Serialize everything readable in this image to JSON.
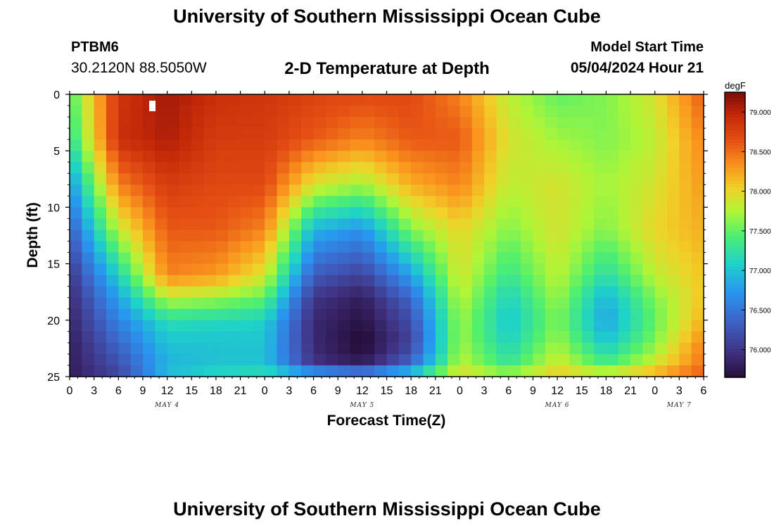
{
  "header": {
    "title": "University of Southern Mississippi Ocean Cube",
    "station_id": "PTBM6",
    "station_coords": "30.2120N  88.5050W",
    "plot_title": "2-D Temperature at Depth",
    "model_start_label": "Model Start Time",
    "model_start_value": "05/04/2024 Hour 21"
  },
  "footer": {
    "title": "University of Southern Mississippi Ocean Cube"
  },
  "chart_data": {
    "type": "heatmap",
    "title": "2-D Temperature at Depth",
    "xlabel": "Forecast Time(Z)",
    "ylabel": "Depth (ft)",
    "colorbar_unit": "degF",
    "x_tick_labels": [
      "0",
      "3",
      "6",
      "9",
      "12",
      "15",
      "18",
      "21",
      "0",
      "3",
      "6",
      "9",
      "12",
      "15",
      "18",
      "21",
      "0",
      "3",
      "6",
      "9",
      "12",
      "15",
      "18",
      "21",
      "0",
      "3",
      "6"
    ],
    "date_labels": [
      {
        "label": "MAY 4",
        "at_tick": 4
      },
      {
        "label": "MAY 5",
        "at_tick": 12
      },
      {
        "label": "MAY 6",
        "at_tick": 20
      },
      {
        "label": "MAY 7",
        "at_tick": 25
      }
    ],
    "y_ticks": [
      0,
      5,
      10,
      15,
      20,
      25
    ],
    "ylim": [
      0,
      25
    ],
    "y_inverted": true,
    "colorbar_ticks": [
      "79.000",
      "78.500",
      "78.000",
      "77.500",
      "77.000",
      "76.500",
      "76.000"
    ],
    "colorbar_range": [
      75.65,
      79.25
    ],
    "grid": false,
    "forecast_hours": [
      0,
      6,
      12,
      18,
      24,
      30,
      36,
      42,
      48,
      54,
      60,
      66,
      72,
      78
    ],
    "depths_ft": [
      0,
      4,
      8,
      12,
      16,
      18,
      20,
      22,
      24,
      25
    ],
    "values_degF": [
      [
        77.4,
        77.2,
        76.7,
        76.3,
        76.0,
        75.9,
        75.85,
        75.8,
        75.8,
        75.8
      ],
      [
        78.85,
        78.9,
        78.4,
        77.8,
        77.1,
        76.8,
        76.6,
        76.4,
        76.2,
        76.1
      ],
      [
        79.1,
        79.05,
        78.8,
        78.6,
        78.4,
        77.8,
        77.2,
        77.0,
        76.9,
        77.0
      ],
      [
        78.9,
        78.8,
        78.7,
        78.6,
        78.3,
        77.7,
        77.15,
        77.0,
        77.0,
        77.2
      ],
      [
        78.85,
        78.8,
        78.7,
        78.4,
        77.9,
        77.5,
        77.1,
        77.0,
        77.0,
        77.3
      ],
      [
        78.75,
        78.6,
        77.9,
        76.9,
        76.3,
        76.0,
        75.9,
        75.9,
        76.0,
        77.2
      ],
      [
        78.7,
        78.4,
        77.7,
        76.7,
        76.1,
        75.8,
        75.7,
        75.6,
        75.8,
        77.0
      ],
      [
        78.7,
        78.6,
        78.2,
        77.6,
        76.8,
        76.4,
        76.2,
        76.1,
        76.4,
        77.3
      ],
      [
        78.4,
        78.6,
        78.4,
        78.0,
        77.9,
        77.8,
        77.7,
        77.7,
        77.8,
        78.0
      ],
      [
        77.8,
        77.9,
        77.8,
        77.6,
        77.3,
        77.1,
        77.0,
        77.1,
        77.3,
        77.8
      ],
      [
        77.5,
        77.7,
        77.9,
        77.9,
        77.8,
        77.7,
        77.6,
        77.7,
        77.9,
        78.1
      ],
      [
        77.6,
        77.6,
        77.7,
        77.6,
        77.2,
        76.9,
        76.8,
        77.0,
        77.4,
        78.0
      ],
      [
        77.9,
        77.8,
        77.9,
        78.0,
        77.8,
        77.6,
        77.5,
        77.6,
        77.9,
        78.3
      ],
      [
        78.6,
        78.4,
        78.3,
        78.2,
        78.1,
        78.1,
        78.2,
        78.4,
        78.5,
        78.6
      ]
    ]
  }
}
